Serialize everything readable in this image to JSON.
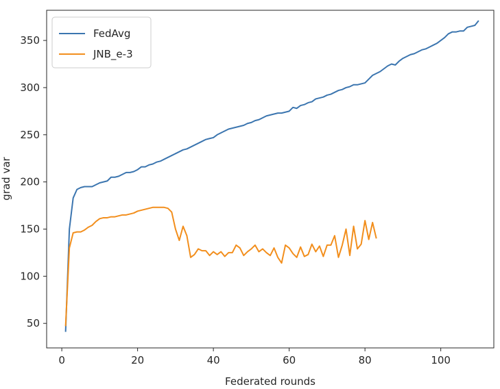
{
  "chart_data": {
    "type": "line",
    "xlabel": "Federated rounds",
    "ylabel": "grad var",
    "xlim": [
      -4,
      114
    ],
    "ylim": [
      24,
      382
    ],
    "xticks": [
      0,
      20,
      40,
      60,
      80,
      100
    ],
    "yticks": [
      50,
      100,
      150,
      200,
      250,
      300,
      350
    ],
    "grid": false,
    "legend_position": "top-left",
    "series": [
      {
        "name": "FedAvg",
        "color": "#3b75af",
        "x": [
          1,
          2,
          3,
          4,
          5,
          6,
          7,
          8,
          9,
          10,
          11,
          12,
          13,
          14,
          15,
          16,
          17,
          18,
          19,
          20,
          21,
          22,
          23,
          24,
          25,
          26,
          27,
          28,
          29,
          30,
          31,
          32,
          33,
          34,
          35,
          36,
          37,
          38,
          39,
          40,
          41,
          42,
          43,
          44,
          45,
          46,
          47,
          48,
          49,
          50,
          51,
          52,
          53,
          54,
          55,
          56,
          57,
          58,
          59,
          60,
          61,
          62,
          63,
          64,
          65,
          66,
          67,
          68,
          69,
          70,
          71,
          72,
          73,
          74,
          75,
          76,
          77,
          78,
          79,
          80,
          81,
          82,
          83,
          84,
          85,
          86,
          87,
          88,
          89,
          90,
          91,
          92,
          93,
          94,
          95,
          96,
          97,
          98,
          99,
          100,
          101,
          102,
          103,
          104,
          105,
          106,
          107,
          108,
          109,
          110
        ],
        "y": [
          41,
          150,
          183,
          192,
          194,
          195,
          195,
          195,
          197,
          199,
          200,
          201,
          205,
          205,
          206,
          208,
          210,
          210,
          211,
          213,
          216,
          216,
          218,
          219,
          221,
          222,
          224,
          226,
          228,
          230,
          232,
          234,
          235,
          237,
          239,
          241,
          243,
          245,
          246,
          247,
          250,
          252,
          254,
          256,
          257,
          258,
          259,
          260,
          262,
          263,
          265,
          266,
          268,
          270,
          271,
          272,
          273,
          273,
          274,
          275,
          279,
          278,
          281,
          282,
          284,
          285,
          288,
          289,
          290,
          292,
          293,
          295,
          297,
          298,
          300,
          301,
          303,
          303,
          304,
          305,
          309,
          313,
          315,
          317,
          320,
          323,
          325,
          324,
          328,
          331,
          333,
          335,
          336,
          338,
          340,
          341,
          343,
          345,
          347,
          350,
          353,
          357,
          359,
          359,
          360,
          360,
          364,
          365,
          366,
          371
        ]
      },
      {
        "name": "JNB_e-3",
        "color": "#f28e1c",
        "x": [
          1,
          2,
          3,
          4,
          5,
          6,
          7,
          8,
          9,
          10,
          11,
          12,
          13,
          14,
          15,
          16,
          17,
          18,
          19,
          20,
          21,
          22,
          23,
          24,
          25,
          26,
          27,
          28,
          29,
          30,
          31,
          32,
          33,
          34,
          35,
          36,
          37,
          38,
          39,
          40,
          41,
          42,
          43,
          44,
          45,
          46,
          47,
          48,
          49,
          50,
          51,
          52,
          53,
          54,
          55,
          56,
          57,
          58,
          59,
          60,
          61,
          62,
          63,
          64,
          65,
          66,
          67,
          68,
          69,
          70,
          71,
          72,
          73,
          74,
          75,
          76,
          77,
          78,
          79,
          80,
          81,
          82,
          83
        ],
        "y": [
          47,
          130,
          146,
          147,
          147,
          149,
          152,
          154,
          158,
          161,
          162,
          162,
          163,
          163,
          164,
          165,
          165,
          166,
          167,
          169,
          170,
          171,
          172,
          173,
          173,
          173,
          173,
          172,
          168,
          150,
          138,
          153,
          143,
          120,
          123,
          129,
          127,
          127,
          122,
          126,
          123,
          126,
          121,
          125,
          125,
          133,
          130,
          122,
          126,
          129,
          133,
          126,
          129,
          125,
          122,
          130,
          120,
          114,
          133,
          130,
          124,
          120,
          131,
          121,
          123,
          134,
          126,
          132,
          121,
          133,
          133,
          143,
          120,
          133,
          150,
          122,
          153,
          129,
          134,
          159,
          139,
          157,
          140
        ]
      }
    ]
  }
}
